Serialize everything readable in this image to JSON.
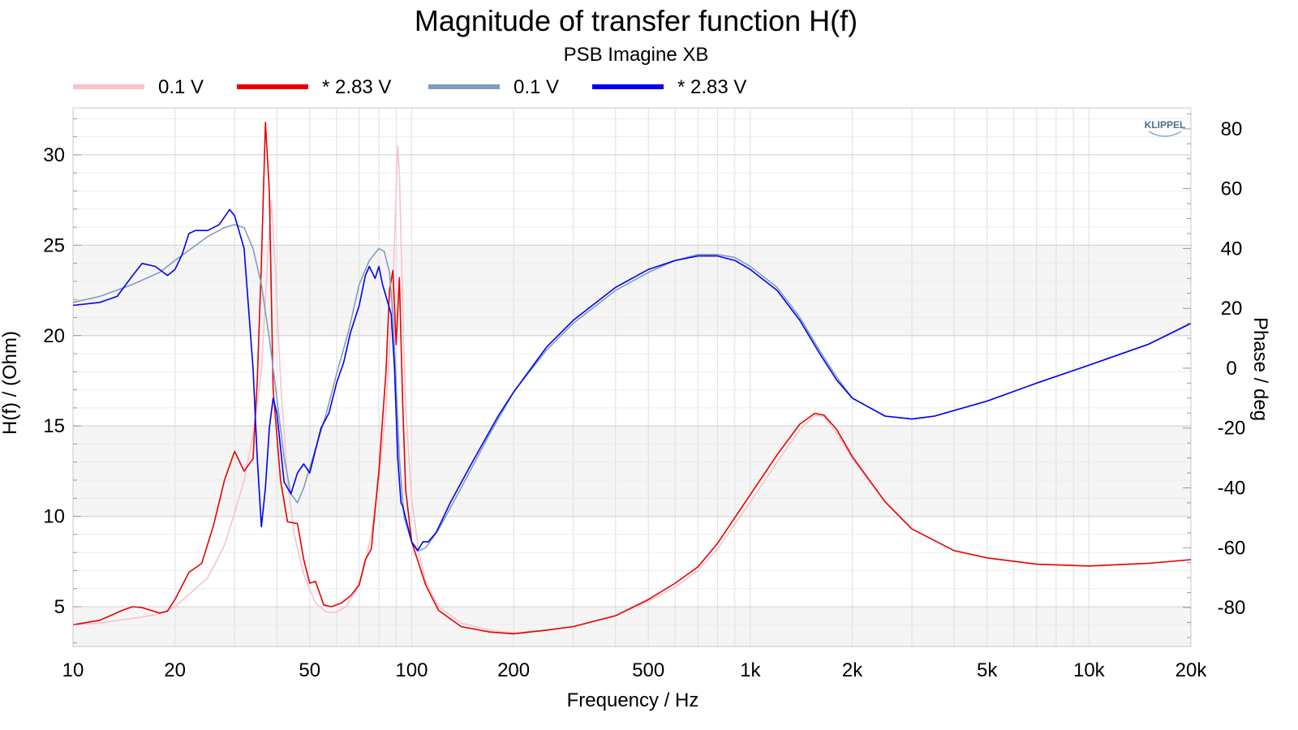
{
  "chart_data": {
    "type": "line",
    "title": "Magnitude of transfer function H(f)",
    "subtitle": "PSB Imagine XB",
    "xlabel": "Frequency / Hz",
    "ylabel": "H(f) / (Ohm)",
    "y2label": "Phase / deg",
    "x_scale": "log",
    "xlim": [
      10,
      20000
    ],
    "ylim": [
      2.8,
      32.6
    ],
    "y2lim": [
      -93,
      87
    ],
    "grid": true,
    "legend_position": "top",
    "x_ticks": [
      {
        "value": 10,
        "label": "10"
      },
      {
        "value": 20,
        "label": "20"
      },
      {
        "value": 50,
        "label": "50"
      },
      {
        "value": 100,
        "label": "100"
      },
      {
        "value": 200,
        "label": "200"
      },
      {
        "value": 500,
        "label": "500"
      },
      {
        "value": 1000,
        "label": "1k"
      },
      {
        "value": 2000,
        "label": "2k"
      },
      {
        "value": 5000,
        "label": "5k"
      },
      {
        "value": 10000,
        "label": "10k"
      },
      {
        "value": 20000,
        "label": "20k"
      }
    ],
    "y_ticks": [
      5,
      10,
      15,
      20,
      25,
      30
    ],
    "y2_ticks": [
      -80,
      -60,
      -40,
      -20,
      0,
      20,
      40,
      60,
      80
    ],
    "watermark": "KLIPPEL",
    "series": [
      {
        "name": "0.1 V",
        "axis": "left",
        "color": "#f7c3cc",
        "width": 1.6,
        "points": [
          [
            10,
            4.0
          ],
          [
            12,
            4.1
          ],
          [
            15,
            4.35
          ],
          [
            18,
            4.6
          ],
          [
            20,
            5.0
          ],
          [
            25,
            6.6
          ],
          [
            28,
            8.4
          ],
          [
            30,
            10.2
          ],
          [
            32,
            12.0
          ],
          [
            34,
            14.5
          ],
          [
            36,
            18.0
          ],
          [
            37.5,
            24.0
          ],
          [
            38.5,
            27.5
          ],
          [
            39.5,
            24.0
          ],
          [
            41,
            17.5
          ],
          [
            43,
            12.0
          ],
          [
            45,
            9.0
          ],
          [
            48,
            6.8
          ],
          [
            52,
            5.2
          ],
          [
            56,
            4.7
          ],
          [
            60,
            4.7
          ],
          [
            64,
            5.0
          ],
          [
            68,
            5.8
          ],
          [
            72,
            7.0
          ],
          [
            76,
            9.0
          ],
          [
            80,
            12.0
          ],
          [
            84,
            16.0
          ],
          [
            88,
            22.5
          ],
          [
            90,
            28.0
          ],
          [
            91,
            30.5
          ],
          [
            92,
            29.0
          ],
          [
            94,
            22.0
          ],
          [
            96,
            16.0
          ],
          [
            100,
            11.0
          ],
          [
            105,
            8.0
          ],
          [
            110,
            6.4
          ],
          [
            120,
            5.0
          ],
          [
            140,
            4.1
          ],
          [
            170,
            3.7
          ],
          [
            200,
            3.55
          ],
          [
            250,
            3.7
          ],
          [
            300,
            3.9
          ],
          [
            400,
            4.5
          ],
          [
            500,
            5.3
          ],
          [
            600,
            6.1
          ],
          [
            700,
            7.0
          ],
          [
            800,
            8.2
          ],
          [
            1000,
            10.8
          ],
          [
            1200,
            13.0
          ],
          [
            1400,
            14.8
          ],
          [
            1550,
            15.6
          ],
          [
            1650,
            15.5
          ],
          [
            1800,
            14.6
          ],
          [
            2000,
            13.2
          ],
          [
            2500,
            10.8
          ],
          [
            3000,
            9.3
          ],
          [
            4000,
            8.1
          ],
          [
            5000,
            7.7
          ],
          [
            7000,
            7.35
          ],
          [
            10000,
            7.25
          ],
          [
            15000,
            7.4
          ],
          [
            20000,
            7.6
          ]
        ]
      },
      {
        "name": "* 2.83 V",
        "axis": "left",
        "color": "#e80000",
        "width": 1.6,
        "points": [
          [
            10,
            4.0
          ],
          [
            12,
            4.25
          ],
          [
            14,
            4.8
          ],
          [
            15,
            5.0
          ],
          [
            16,
            4.95
          ],
          [
            18,
            4.65
          ],
          [
            19,
            4.75
          ],
          [
            20,
            5.4
          ],
          [
            22,
            6.9
          ],
          [
            24,
            7.4
          ],
          [
            26,
            9.5
          ],
          [
            28,
            12.0
          ],
          [
            30,
            13.6
          ],
          [
            32,
            12.5
          ],
          [
            34,
            13.2
          ],
          [
            35,
            17.5
          ],
          [
            36,
            24.0
          ],
          [
            37,
            31.8
          ],
          [
            38,
            28.0
          ],
          [
            39,
            17.0
          ],
          [
            41,
            12.0
          ],
          [
            43,
            9.7
          ],
          [
            46,
            9.6
          ],
          [
            48,
            7.6
          ],
          [
            50,
            6.3
          ],
          [
            52,
            6.4
          ],
          [
            55,
            5.1
          ],
          [
            58,
            5.0
          ],
          [
            62,
            5.2
          ],
          [
            66,
            5.6
          ],
          [
            70,
            6.2
          ],
          [
            73,
            7.6
          ],
          [
            76,
            8.2
          ],
          [
            80,
            12.5
          ],
          [
            84,
            18.0
          ],
          [
            86,
            22.5
          ],
          [
            88,
            23.6
          ],
          [
            90,
            19.5
          ],
          [
            92,
            23.2
          ],
          [
            94,
            16.5
          ],
          [
            96,
            11.5
          ],
          [
            100,
            8.6
          ],
          [
            104,
            7.6
          ],
          [
            110,
            6.2
          ],
          [
            120,
            4.8
          ],
          [
            140,
            3.9
          ],
          [
            170,
            3.6
          ],
          [
            200,
            3.5
          ],
          [
            250,
            3.7
          ],
          [
            300,
            3.9
          ],
          [
            400,
            4.5
          ],
          [
            500,
            5.4
          ],
          [
            600,
            6.3
          ],
          [
            700,
            7.2
          ],
          [
            800,
            8.5
          ],
          [
            1000,
            11.2
          ],
          [
            1200,
            13.4
          ],
          [
            1400,
            15.1
          ],
          [
            1550,
            15.7
          ],
          [
            1650,
            15.6
          ],
          [
            1800,
            14.8
          ],
          [
            2000,
            13.3
          ],
          [
            2500,
            10.8
          ],
          [
            3000,
            9.3
          ],
          [
            4000,
            8.1
          ],
          [
            5000,
            7.7
          ],
          [
            7000,
            7.35
          ],
          [
            10000,
            7.25
          ],
          [
            15000,
            7.4
          ],
          [
            20000,
            7.6
          ]
        ]
      },
      {
        "name": "0.1 V",
        "axis": "right",
        "color": "#7f9dbf",
        "width": 1.6,
        "points": [
          [
            10,
            22
          ],
          [
            12,
            24
          ],
          [
            15,
            28
          ],
          [
            18,
            32
          ],
          [
            20,
            36
          ],
          [
            25,
            44
          ],
          [
            28,
            47
          ],
          [
            30,
            48
          ],
          [
            32,
            47
          ],
          [
            34,
            40
          ],
          [
            36,
            28
          ],
          [
            38,
            10
          ],
          [
            40,
            -10
          ],
          [
            42,
            -30
          ],
          [
            44,
            -42
          ],
          [
            46,
            -45
          ],
          [
            48,
            -40
          ],
          [
            52,
            -27
          ],
          [
            56,
            -15
          ],
          [
            60,
            -2
          ],
          [
            65,
            12
          ],
          [
            70,
            28
          ],
          [
            75,
            36
          ],
          [
            80,
            40
          ],
          [
            83,
            39
          ],
          [
            86,
            32
          ],
          [
            88,
            18
          ],
          [
            90,
            -5
          ],
          [
            92,
            -30
          ],
          [
            95,
            -50
          ],
          [
            100,
            -58
          ],
          [
            105,
            -61
          ],
          [
            110,
            -60
          ],
          [
            120,
            -54
          ],
          [
            140,
            -40
          ],
          [
            170,
            -22
          ],
          [
            200,
            -8
          ],
          [
            250,
            6
          ],
          [
            300,
            15
          ],
          [
            400,
            26
          ],
          [
            500,
            32
          ],
          [
            600,
            36
          ],
          [
            700,
            38
          ],
          [
            800,
            38
          ],
          [
            900,
            37
          ],
          [
            1000,
            34
          ],
          [
            1200,
            27
          ],
          [
            1400,
            17
          ],
          [
            1600,
            6
          ],
          [
            1800,
            -3
          ],
          [
            2000,
            -10
          ],
          [
            2500,
            -16
          ],
          [
            3000,
            -17
          ],
          [
            3500,
            -16
          ],
          [
            5000,
            -11
          ],
          [
            7000,
            -5
          ],
          [
            10000,
            1
          ],
          [
            15000,
            8
          ],
          [
            20000,
            15
          ]
        ]
      },
      {
        "name": "* 2.83 V",
        "axis": "right",
        "color": "#0000f0",
        "width": 1.6,
        "points": [
          [
            10,
            21
          ],
          [
            12,
            22
          ],
          [
            13.5,
            24
          ],
          [
            15,
            31
          ],
          [
            16,
            35
          ],
          [
            17.5,
            34
          ],
          [
            19,
            31
          ],
          [
            20,
            33
          ],
          [
            21,
            38
          ],
          [
            22,
            45
          ],
          [
            23,
            46
          ],
          [
            25,
            46
          ],
          [
            27,
            48
          ],
          [
            29,
            53
          ],
          [
            30,
            51
          ],
          [
            32,
            40
          ],
          [
            34,
            0
          ],
          [
            35,
            -30
          ],
          [
            36,
            -53
          ],
          [
            37,
            -40
          ],
          [
            38,
            -20
          ],
          [
            39,
            -10
          ],
          [
            40,
            -15
          ],
          [
            42,
            -38
          ],
          [
            44,
            -42
          ],
          [
            46,
            -35
          ],
          [
            48,
            -32
          ],
          [
            50,
            -35
          ],
          [
            54,
            -20
          ],
          [
            57,
            -15
          ],
          [
            60,
            -5
          ],
          [
            63,
            2
          ],
          [
            66,
            12
          ],
          [
            70,
            21
          ],
          [
            73,
            31
          ],
          [
            75,
            34
          ],
          [
            78,
            30
          ],
          [
            80,
            34
          ],
          [
            82,
            28
          ],
          [
            85,
            22
          ],
          [
            87,
            18
          ],
          [
            89,
            0
          ],
          [
            91,
            -30
          ],
          [
            93,
            -45
          ],
          [
            94,
            -46
          ],
          [
            96,
            -50
          ],
          [
            100,
            -58
          ],
          [
            104,
            -61
          ],
          [
            108,
            -58
          ],
          [
            112,
            -58
          ],
          [
            118,
            -55
          ],
          [
            130,
            -45
          ],
          [
            150,
            -32
          ],
          [
            180,
            -16
          ],
          [
            200,
            -8
          ],
          [
            250,
            7
          ],
          [
            300,
            16
          ],
          [
            400,
            27
          ],
          [
            500,
            33
          ],
          [
            600,
            36
          ],
          [
            700,
            37.5
          ],
          [
            800,
            37.5
          ],
          [
            900,
            36
          ],
          [
            1000,
            33
          ],
          [
            1200,
            26
          ],
          [
            1400,
            16
          ],
          [
            1600,
            5
          ],
          [
            1800,
            -4
          ],
          [
            2000,
            -10
          ],
          [
            2500,
            -16
          ],
          [
            3000,
            -17
          ],
          [
            3500,
            -16
          ],
          [
            5000,
            -11
          ],
          [
            7000,
            -5
          ],
          [
            10000,
            1
          ],
          [
            15000,
            8
          ],
          [
            20000,
            15
          ]
        ]
      }
    ]
  }
}
